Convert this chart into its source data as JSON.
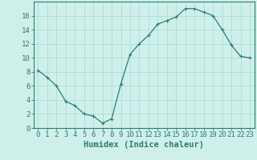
{
  "x": [
    0,
    1,
    2,
    3,
    4,
    5,
    6,
    7,
    8,
    9,
    10,
    11,
    12,
    13,
    14,
    15,
    16,
    17,
    18,
    19,
    20,
    21,
    22,
    23
  ],
  "y": [
    8.2,
    7.2,
    6.0,
    3.8,
    3.2,
    2.0,
    1.7,
    0.7,
    1.3,
    6.3,
    10.5,
    12.0,
    13.2,
    14.8,
    15.3,
    15.8,
    17.0,
    17.0,
    16.5,
    16.0,
    14.0,
    11.8,
    10.2,
    10.0
  ],
  "line_color": "#2e7d6e",
  "marker": "+",
  "marker_size": 3.5,
  "marker_lw": 0.8,
  "line_width": 0.9,
  "bg_color": "#cff0ea",
  "grid_color": "#aaddd6",
  "xlabel": "Humidex (Indice chaleur)",
  "ylim": [
    0,
    18
  ],
  "xlim": [
    -0.5,
    23.5
  ],
  "yticks": [
    0,
    2,
    4,
    6,
    8,
    10,
    12,
    14,
    16
  ],
  "xticks": [
    0,
    1,
    2,
    3,
    4,
    5,
    6,
    7,
    8,
    9,
    10,
    11,
    12,
    13,
    14,
    15,
    16,
    17,
    18,
    19,
    20,
    21,
    22,
    23
  ],
  "tick_color": "#2e7d6e",
  "label_color": "#2e7d6e",
  "axis_color": "#2e7d6e",
  "xlabel_fontsize": 7.5,
  "tick_fontsize": 6.5
}
